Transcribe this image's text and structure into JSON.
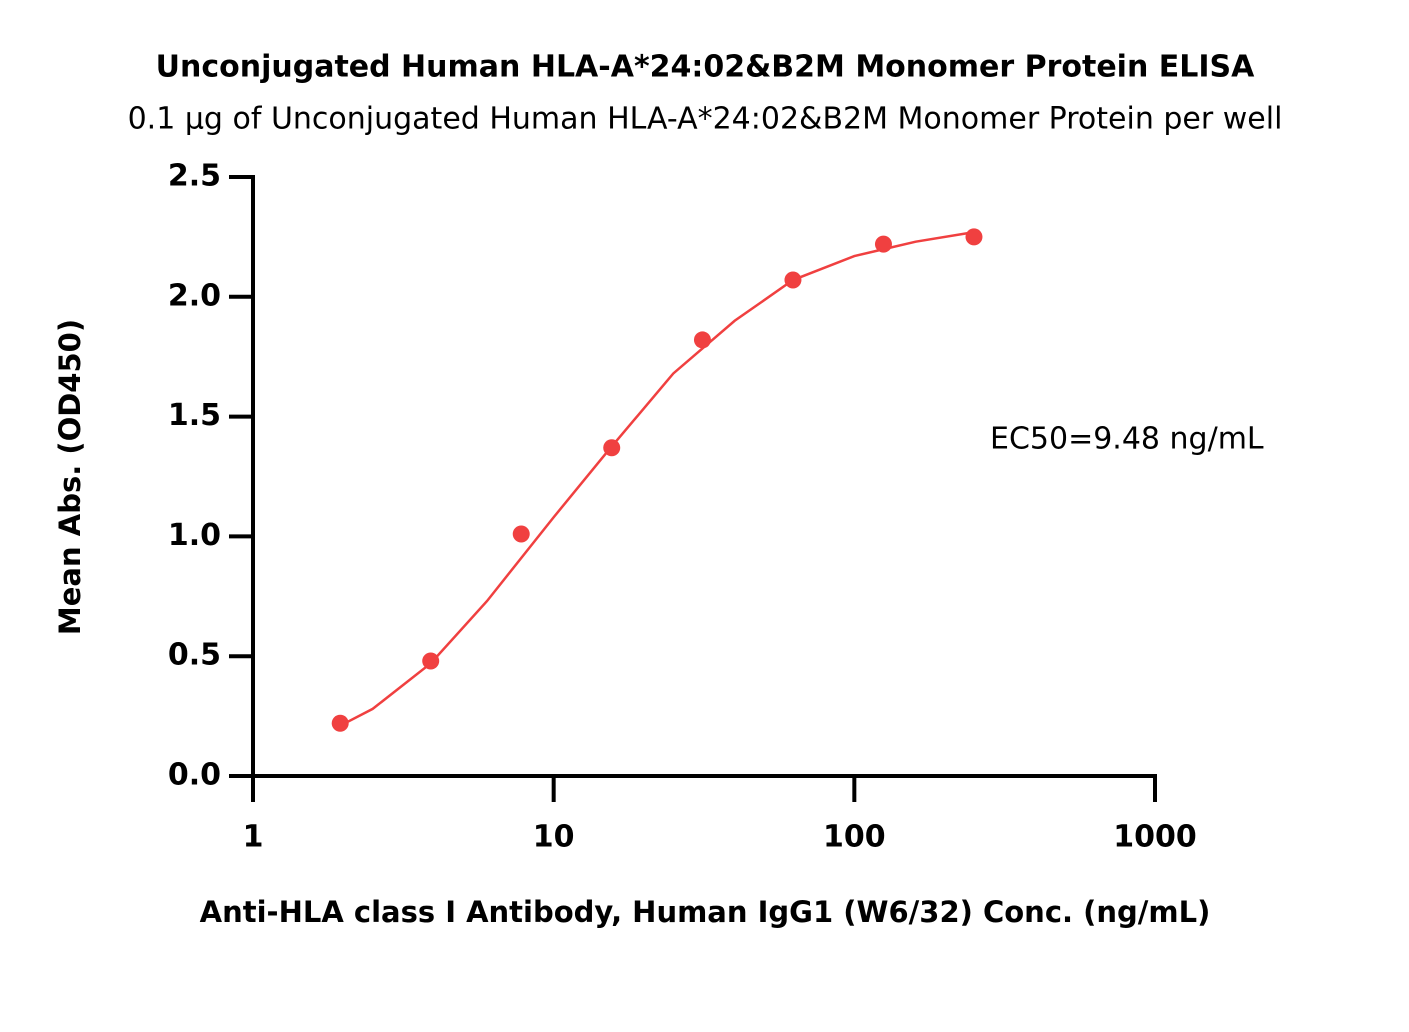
{
  "chart_data": {
    "type": "scatter",
    "title": "Unconjugated Human HLA-A*24:02&B2M Monomer Protein ELISA",
    "subtitle": "0.1 μg of Unconjugated Human HLA-A*24:02&B2M Monomer Protein per well",
    "xlabel": "Anti-HLA class I Antibody, Human IgG1 (W6/32) Conc. (ng/mL)",
    "ylabel": "Mean Abs. (OD450)",
    "annotation": "EC50=9.48 ng/mL",
    "xscale": "log",
    "x": [
      1.95,
      3.9,
      7.8,
      15.6,
      31.25,
      62.5,
      125,
      250
    ],
    "values": [
      0.22,
      0.48,
      1.01,
      1.37,
      1.82,
      2.07,
      2.22,
      2.25
    ],
    "color": "#f04040",
    "fit": {
      "x": [
        1.95,
        2.5,
        3.9,
        6,
        10,
        15,
        25,
        40,
        62.5,
        100,
        160,
        250
      ],
      "values": [
        0.21,
        0.28,
        0.47,
        0.73,
        1.08,
        1.35,
        1.68,
        1.9,
        2.07,
        2.17,
        2.23,
        2.27
      ],
      "color": "#f04040"
    },
    "xlim": [
      1,
      1000
    ],
    "xticks": [
      1,
      10,
      100,
      1000
    ],
    "ylim": [
      0,
      2.5
    ],
    "yticks": [
      {
        "value": 0,
        "label": "0.0"
      },
      {
        "value": 0.5,
        "label": "0.5"
      },
      {
        "value": 1,
        "label": "1.0"
      },
      1.5,
      {
        "value": 2,
        "label": "2.0"
      },
      2.5
    ],
    "grid": false
  }
}
